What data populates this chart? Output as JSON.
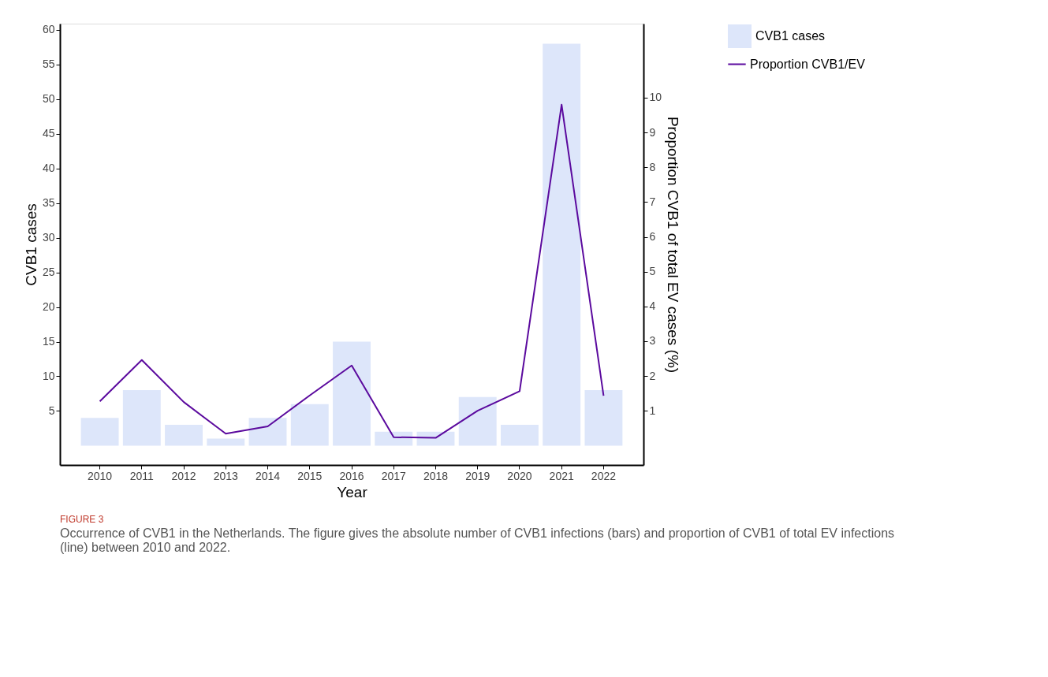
{
  "chart_data": {
    "type": "bar",
    "xlabel": "Year",
    "ylabel": "CVB1 cases",
    "y2label": "Proportion CVB1 of total EV cases (%)",
    "categories": [
      "2010",
      "2011",
      "2012",
      "2013",
      "2014",
      "2015",
      "2016",
      "2017",
      "2018",
      "2019",
      "2020",
      "2021",
      "2022"
    ],
    "series": [
      {
        "name": "CVB1 cases",
        "color": "#dde6fa",
        "values": [
          4,
          8,
          3,
          1,
          4,
          6,
          15,
          2,
          2,
          7,
          3,
          58,
          8
        ]
      },
      {
        "name": "Proportion CVB1/EV",
        "type": "line",
        "axis": "y2",
        "color": "#5b0a9e",
        "values": [
          1.27,
          2.46,
          1.25,
          0.34,
          0.55,
          1.44,
          2.3,
          0.24,
          0.22,
          1.0,
          1.56,
          9.8,
          1.43
        ]
      }
    ],
    "ylim": [
      -2.8,
      60.9
    ],
    "yticks": [
      5,
      10,
      15,
      20,
      25,
      30,
      35,
      40,
      45,
      50,
      55,
      60
    ],
    "y2lim": [
      -0.56,
      12.13
    ],
    "y2ticks": [
      1,
      2,
      3,
      4,
      5,
      6,
      7,
      8,
      9,
      10
    ],
    "grid": false,
    "legend": "right",
    "marker": "none",
    "line_style": "solid",
    "annotations": [
      "FIGURE 3",
      "Occurrence of CVB1 in the Netherlands. The figure gives the absolute number of CVB1 infections (bars) and proportion of CVB1 of total EV infections (line) between 2010 and 2022."
    ]
  }
}
